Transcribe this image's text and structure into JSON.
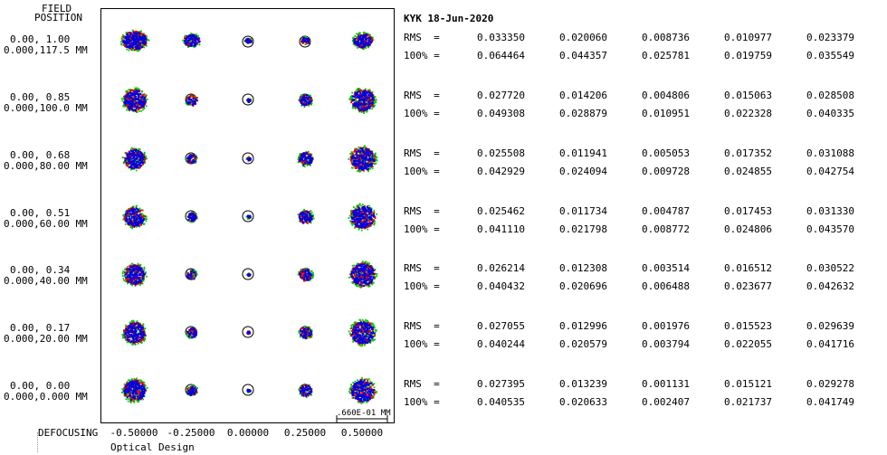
{
  "left_header": {
    "line1": "FIELD",
    "line2": "POSITION"
  },
  "rows": [
    {
      "field": "0.00, 1.00",
      "position": "0.000,117.5 MM",
      "rms": [
        "0.033350",
        "0.020060",
        "0.008736",
        "0.010977",
        "0.023379"
      ],
      "p100": [
        "0.064464",
        "0.044357",
        "0.025781",
        "0.019759",
        "0.035549"
      ]
    },
    {
      "field": "0.00, 0.85",
      "position": "0.000,100.0 MM",
      "rms": [
        "0.027720",
        "0.014206",
        "0.004806",
        "0.015063",
        "0.028508"
      ],
      "p100": [
        "0.049308",
        "0.028879",
        "0.010951",
        "0.022328",
        "0.040335"
      ]
    },
    {
      "field": "0.00, 0.68",
      "position": "0.000,80.00 MM",
      "rms": [
        "0.025508",
        "0.011941",
        "0.005053",
        "0.017352",
        "0.031088"
      ],
      "p100": [
        "0.042929",
        "0.024094",
        "0.009728",
        "0.024855",
        "0.042754"
      ]
    },
    {
      "field": "0.00, 0.51",
      "position": "0.000,60.00 MM",
      "rms": [
        "0.025462",
        "0.011734",
        "0.004787",
        "0.017453",
        "0.031330"
      ],
      "p100": [
        "0.041110",
        "0.021798",
        "0.008772",
        "0.024806",
        "0.043570"
      ]
    },
    {
      "field": "0.00, 0.34",
      "position": "0.000,40.00 MM",
      "rms": [
        "0.026214",
        "0.012308",
        "0.003514",
        "0.016512",
        "0.030522"
      ],
      "p100": [
        "0.040432",
        "0.020696",
        "0.006488",
        "0.023677",
        "0.042632"
      ]
    },
    {
      "field": "0.00, 0.17",
      "position": "0.000,20.00 MM",
      "rms": [
        "0.027055",
        "0.012996",
        "0.001976",
        "0.015523",
        "0.029639"
      ],
      "p100": [
        "0.040244",
        "0.020579",
        "0.003794",
        "0.022055",
        "0.041716"
      ]
    },
    {
      "field": "0.00, 0.00",
      "position": "0.000,0.000 MM",
      "rms": [
        "0.027395",
        "0.013239",
        "0.001131",
        "0.015121",
        "0.029278"
      ],
      "p100": [
        "0.040535",
        "0.020633",
        "0.002407",
        "0.021737",
        "0.041749"
      ]
    }
  ],
  "header_right": "KYK 18-Jun-2020",
  "rms_label": "RMS  =",
  "p100_label": "100% =",
  "defocusing_label": "DEFOCUSING",
  "defocus_values": [
    "-0.50000",
    "-0.25000",
    "0.00000",
    "0.25000",
    "0.50000"
  ],
  "scale_label": ".660E-01 MM",
  "footer": "Optical Design",
  "colors": {
    "red": "#e00000",
    "green": "#00cc00",
    "blue": "#0000e0",
    "black": "#000000"
  }
}
